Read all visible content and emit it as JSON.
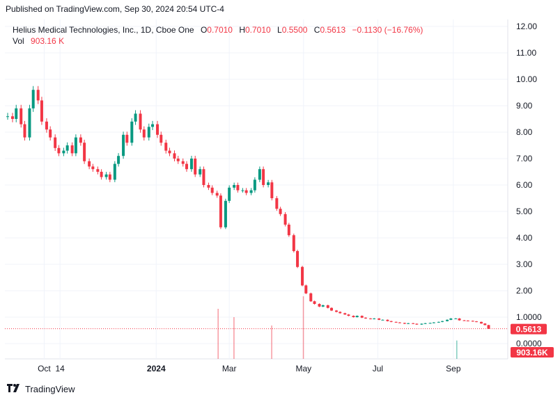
{
  "header": {
    "published": "Published on TradingView.com, Sep 30, 2024 20:54 UTC-4"
  },
  "legend": {
    "symbol": "Helius Medical Technologies, Inc., 1D, Cboe One",
    "open_label": "O",
    "open": "0.7010",
    "high_label": "H",
    "high": "0.7010",
    "low_label": "L",
    "low": "0.5500",
    "close_label": "C",
    "close": "0.5613",
    "change": "−0.1130 (−16.76%)",
    "vol_label": "Vol",
    "vol": "903.16 K"
  },
  "footer": {
    "brand": "TradingView"
  },
  "colors": {
    "up": "#089981",
    "down": "#f23645",
    "grid": "#f0f3fa",
    "text": "#131722"
  },
  "chart_data": {
    "type": "candlestick",
    "y_axis": {
      "min": 0,
      "max": 12,
      "ticks": [
        "12.00",
        "11.00",
        "10.00",
        "9.00",
        "8.00",
        "7.00",
        "6.00",
        "5.00",
        "4.00",
        "3.00",
        "2.00",
        "1.0000",
        "0.0000"
      ]
    },
    "x_axis": {
      "ticks": [
        {
          "label": "Oct",
          "bold": false
        },
        {
          "label": "14",
          "bold": false
        },
        {
          "label": "2024",
          "bold": true
        },
        {
          "label": "Mar",
          "bold": false
        },
        {
          "label": "May",
          "bold": false
        },
        {
          "label": "Jul",
          "bold": false
        },
        {
          "label": "Sep",
          "bold": false
        }
      ]
    },
    "last_price": "0.5613",
    "last_volume": "903.16K",
    "grid": true,
    "series": [
      {
        "name": "Price",
        "points": [
          {
            "d": "2023-09-01",
            "c": 8.6
          },
          {
            "d": "2023-09-05",
            "c": 8.5
          },
          {
            "d": "2023-09-08",
            "c": 8.9
          },
          {
            "d": "2023-09-12",
            "c": 8.3
          },
          {
            "d": "2023-09-15",
            "c": 7.8
          },
          {
            "d": "2023-09-19",
            "c": 8.9
          },
          {
            "d": "2023-09-22",
            "c": 9.6
          },
          {
            "d": "2023-09-26",
            "c": 9.2
          },
          {
            "d": "2023-09-29",
            "c": 8.4
          },
          {
            "d": "2023-10-03",
            "c": 8.1
          },
          {
            "d": "2023-10-06",
            "c": 7.8
          },
          {
            "d": "2023-10-10",
            "c": 7.4
          },
          {
            "d": "2023-10-13",
            "c": 7.2
          },
          {
            "d": "2023-10-17",
            "c": 7.3
          },
          {
            "d": "2023-10-20",
            "c": 7.5
          },
          {
            "d": "2023-10-24",
            "c": 7.2
          },
          {
            "d": "2023-10-27",
            "c": 7.8
          },
          {
            "d": "2023-10-31",
            "c": 7.6
          },
          {
            "d": "2023-11-03",
            "c": 6.9
          },
          {
            "d": "2023-11-07",
            "c": 6.7
          },
          {
            "d": "2023-11-10",
            "c": 6.6
          },
          {
            "d": "2023-11-14",
            "c": 6.5
          },
          {
            "d": "2023-11-17",
            "c": 6.3
          },
          {
            "d": "2023-11-21",
            "c": 6.4
          },
          {
            "d": "2023-11-24",
            "c": 6.2
          },
          {
            "d": "2023-11-28",
            "c": 6.8
          },
          {
            "d": "2023-12-01",
            "c": 7.1
          },
          {
            "d": "2023-12-05",
            "c": 7.9
          },
          {
            "d": "2023-12-08",
            "c": 7.6
          },
          {
            "d": "2023-12-12",
            "c": 8.4
          },
          {
            "d": "2023-12-15",
            "c": 8.7
          },
          {
            "d": "2023-12-19",
            "c": 8.1
          },
          {
            "d": "2023-12-22",
            "c": 7.8
          },
          {
            "d": "2023-12-26",
            "c": 8.2
          },
          {
            "d": "2023-12-29",
            "c": 8.3
          },
          {
            "d": "2024-01-02",
            "c": 7.9
          },
          {
            "d": "2024-01-05",
            "c": 7.6
          },
          {
            "d": "2024-01-09",
            "c": 7.3
          },
          {
            "d": "2024-01-12",
            "c": 7.2
          },
          {
            "d": "2024-01-16",
            "c": 7.0
          },
          {
            "d": "2024-01-19",
            "c": 6.9
          },
          {
            "d": "2024-01-23",
            "c": 6.8
          },
          {
            "d": "2024-01-26",
            "c": 6.6
          },
          {
            "d": "2024-01-30",
            "c": 7.0
          },
          {
            "d": "2024-02-02",
            "c": 6.4
          },
          {
            "d": "2024-02-06",
            "c": 6.6
          },
          {
            "d": "2024-02-09",
            "c": 6.0
          },
          {
            "d": "2024-02-13",
            "c": 5.9
          },
          {
            "d": "2024-02-16",
            "c": 5.7
          },
          {
            "d": "2024-02-20",
            "c": 5.6
          },
          {
            "d": "2024-02-23",
            "c": 4.4
          },
          {
            "d": "2024-02-27",
            "c": 5.4
          },
          {
            "d": "2024-03-01",
            "c": 5.9
          },
          {
            "d": "2024-03-05",
            "c": 6.0
          },
          {
            "d": "2024-03-08",
            "c": 5.8
          },
          {
            "d": "2024-03-12",
            "c": 5.8
          },
          {
            "d": "2024-03-15",
            "c": 5.7
          },
          {
            "d": "2024-03-19",
            "c": 5.8
          },
          {
            "d": "2024-03-22",
            "c": 6.2
          },
          {
            "d": "2024-03-26",
            "c": 6.6
          },
          {
            "d": "2024-03-29",
            "c": 6.0
          },
          {
            "d": "2024-04-02",
            "c": 6.1
          },
          {
            "d": "2024-04-05",
            "c": 5.5
          },
          {
            "d": "2024-04-09",
            "c": 5.1
          },
          {
            "d": "2024-04-12",
            "c": 4.9
          },
          {
            "d": "2024-04-16",
            "c": 4.5
          },
          {
            "d": "2024-04-19",
            "c": 4.1
          },
          {
            "d": "2024-04-23",
            "c": 3.5
          },
          {
            "d": "2024-04-26",
            "c": 2.9
          },
          {
            "d": "2024-04-30",
            "c": 2.2
          },
          {
            "d": "2024-05-03",
            "c": 1.9
          },
          {
            "d": "2024-05-07",
            "c": 1.6
          },
          {
            "d": "2024-05-10",
            "c": 1.5
          },
          {
            "d": "2024-05-14",
            "c": 1.4
          },
          {
            "d": "2024-05-17",
            "c": 1.45
          },
          {
            "d": "2024-05-21",
            "c": 1.35
          },
          {
            "d": "2024-05-24",
            "c": 1.25
          },
          {
            "d": "2024-05-28",
            "c": 1.2
          },
          {
            "d": "2024-05-31",
            "c": 1.15
          },
          {
            "d": "2024-06-04",
            "c": 1.1
          },
          {
            "d": "2024-06-07",
            "c": 1.05
          },
          {
            "d": "2024-06-11",
            "c": 1.0
          },
          {
            "d": "2024-06-14",
            "c": 1.05
          },
          {
            "d": "2024-06-18",
            "c": 0.98
          },
          {
            "d": "2024-06-21",
            "c": 0.95
          },
          {
            "d": "2024-06-25",
            "c": 0.93
          },
          {
            "d": "2024-06-28",
            "c": 0.95
          },
          {
            "d": "2024-07-02",
            "c": 0.9
          },
          {
            "d": "2024-07-05",
            "c": 0.9
          },
          {
            "d": "2024-07-09",
            "c": 0.85
          },
          {
            "d": "2024-07-12",
            "c": 0.82
          },
          {
            "d": "2024-07-16",
            "c": 0.8
          },
          {
            "d": "2024-07-19",
            "c": 0.78
          },
          {
            "d": "2024-07-23",
            "c": 0.75
          },
          {
            "d": "2024-07-26",
            "c": 0.77
          },
          {
            "d": "2024-07-30",
            "c": 0.75
          },
          {
            "d": "2024-08-02",
            "c": 0.72
          },
          {
            "d": "2024-08-06",
            "c": 0.75
          },
          {
            "d": "2024-08-09",
            "c": 0.77
          },
          {
            "d": "2024-08-13",
            "c": 0.78
          },
          {
            "d": "2024-08-16",
            "c": 0.8
          },
          {
            "d": "2024-08-20",
            "c": 0.82
          },
          {
            "d": "2024-08-23",
            "c": 0.85
          },
          {
            "d": "2024-08-27",
            "c": 0.9
          },
          {
            "d": "2024-08-30",
            "c": 0.95
          },
          {
            "d": "2024-09-03",
            "c": 0.95
          },
          {
            "d": "2024-09-06",
            "c": 0.88
          },
          {
            "d": "2024-09-10",
            "c": 0.87
          },
          {
            "d": "2024-09-13",
            "c": 0.86
          },
          {
            "d": "2024-09-17",
            "c": 0.84
          },
          {
            "d": "2024-09-20",
            "c": 0.82
          },
          {
            "d": "2024-09-24",
            "c": 0.76
          },
          {
            "d": "2024-09-27",
            "c": 0.7
          },
          {
            "d": "2024-09-30",
            "c": 0.5613
          }
        ]
      },
      {
        "name": "Vol",
        "spikes": [
          {
            "d": "2024-02-21",
            "v": 6.0
          },
          {
            "d": "2024-03-05",
            "v": 5.0
          },
          {
            "d": "2024-04-05",
            "v": 4.0
          },
          {
            "d": "2024-05-01",
            "v": 7.5
          },
          {
            "d": "2024-09-04",
            "v": 2.2
          }
        ]
      }
    ]
  }
}
